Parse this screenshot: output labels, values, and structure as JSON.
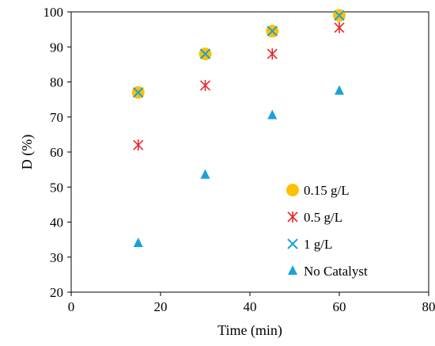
{
  "chart_data": {
    "type": "scatter",
    "xlabel": "Time (min)",
    "ylabel": "D (%)",
    "xlim": [
      0,
      80
    ],
    "ylim": [
      20,
      100
    ],
    "xticks": [
      0,
      20,
      40,
      60,
      80
    ],
    "yticks": [
      20,
      30,
      40,
      50,
      60,
      70,
      80,
      90,
      100
    ],
    "grid": false,
    "legend_position": "bottom-right",
    "series": [
      {
        "name": "0.15 g/L",
        "marker": "circle",
        "color": "#FFC000",
        "x": [
          15,
          30,
          45,
          60
        ],
        "y": [
          77,
          88,
          94.5,
          99
        ]
      },
      {
        "name": "0.5 g/L",
        "marker": "asterisk",
        "color": "#E8272B",
        "x": [
          15,
          30,
          45,
          60
        ],
        "y": [
          62,
          79,
          88,
          95.5
        ]
      },
      {
        "name": "1 g/L",
        "marker": "x",
        "color": "#1BA1D9",
        "x": [
          15,
          30,
          45,
          60
        ],
        "y": [
          77,
          88,
          94.5,
          99
        ]
      },
      {
        "name": "No Catalyst",
        "marker": "triangle",
        "color": "#1BA1D9",
        "x": [
          15,
          30,
          45,
          60
        ],
        "y": [
          34,
          53.5,
          70.5,
          77.5
        ]
      }
    ]
  }
}
